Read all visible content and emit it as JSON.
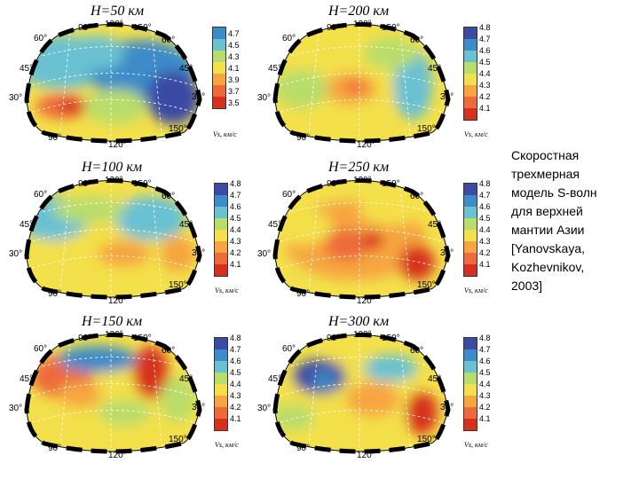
{
  "caption": {
    "title_lines": [
      "Скоростная",
      "трехмерная",
      "модель S-волн",
      "для верхней",
      "мантии Азии"
    ],
    "reference_lines": [
      "[Yanovskaya,",
      "Kozhevnikov,",
      "2003]"
    ]
  },
  "common": {
    "lon_ticks_top": [
      "90°",
      "120°",
      "150°"
    ],
    "lon_ticks_bottom": [
      "90°",
      "120°",
      "150°"
    ],
    "lat_ticks_left": [
      "60°",
      "45°",
      "30°"
    ],
    "lat_ticks_right": [
      "60°",
      "45°",
      "30°"
    ],
    "colorbar_unit": "Vs, км/с"
  },
  "panels": [
    {
      "title": "H=50 км",
      "ticks": [
        "4.7",
        "4.5",
        "4.3",
        "4.1",
        "3.9",
        "3.7",
        "3.5"
      ]
    },
    {
      "title": "H=200 км",
      "ticks": [
        "4.8",
        "4.7",
        "4.6",
        "4.5",
        "4.4",
        "4.3",
        "4.2",
        "4.1"
      ]
    },
    {
      "title": "H=100 км",
      "ticks": [
        "4.8",
        "4.7",
        "4.6",
        "4.5",
        "4.4",
        "4.3",
        "4.2",
        "4.1"
      ]
    },
    {
      "title": "H=250 км",
      "ticks": [
        "4.8",
        "4.7",
        "4.6",
        "4.5",
        "4.4",
        "4.3",
        "4.2",
        "4.1"
      ]
    },
    {
      "title": "H=150 км",
      "ticks": [
        "4.8",
        "4.7",
        "4.6",
        "4.5",
        "4.4",
        "4.3",
        "4.2",
        "4.1"
      ]
    },
    {
      "title": "H=300 км",
      "ticks": [
        "4.8",
        "4.7",
        "4.6",
        "4.5",
        "4.4",
        "4.3",
        "4.2",
        "4.1"
      ]
    }
  ]
}
